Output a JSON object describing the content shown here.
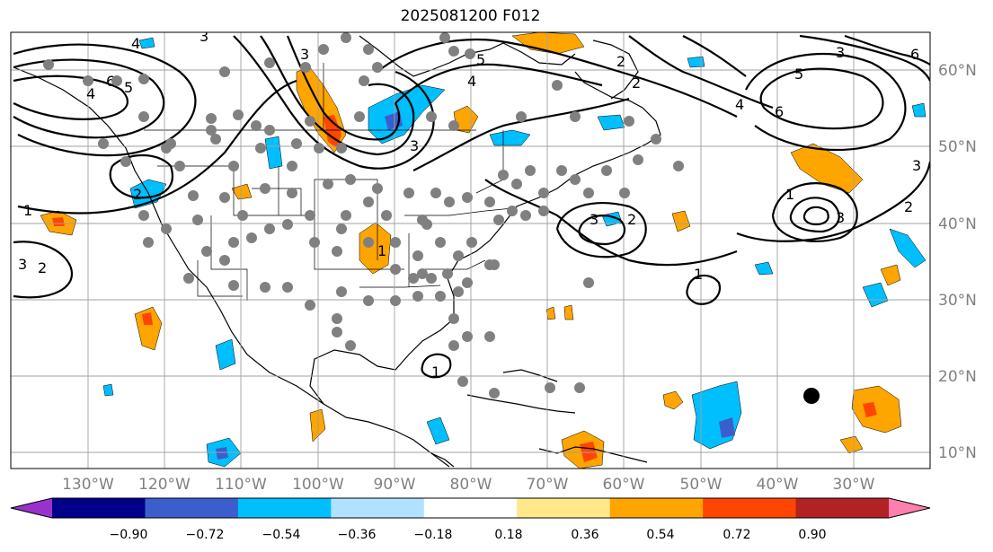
{
  "title": "2025081200 F012",
  "latitude_labels": [
    "60°N",
    "50°N",
    "40°N",
    "30°N",
    "20°N",
    "10°N"
  ],
  "longitude_labels": [
    "130°W",
    "120°W",
    "110°W",
    "100°W",
    "90°W",
    "80°W",
    "70°W",
    "60°W",
    "50°W",
    "40°W",
    "30°W"
  ],
  "colorbar": {
    "ticks": [
      "−0.90",
      "−0.72",
      "−0.54",
      "−0.36",
      "−0.18",
      "0.18",
      "0.36",
      "0.54",
      "0.72",
      "0.90"
    ],
    "colors": [
      "#9932cc",
      "#00008b",
      "#3a5fcd",
      "#00bfff",
      "#b0e2ff",
      "#ffffff",
      "#ffe88a",
      "#ffa500",
      "#ff4500",
      "#b22222",
      "#ff7fae"
    ]
  },
  "contour_labels": [
    "4",
    "3",
    "6",
    "5",
    "4",
    "3",
    "2",
    "1",
    "3",
    "2",
    "3",
    "4",
    "5",
    "6",
    "5",
    "4",
    "3",
    "6",
    "2",
    "1",
    "1",
    "3",
    "2",
    "1",
    "2",
    "3",
    "2",
    "3",
    "1"
  ],
  "colors": {
    "gridline": "#a0a0a0",
    "stations": "#808080",
    "negative_fill": "#00bfff",
    "positive_fill": "#ffa500",
    "strong_positive": "#ff4500",
    "strong_negative": "#3a5fcd"
  }
}
